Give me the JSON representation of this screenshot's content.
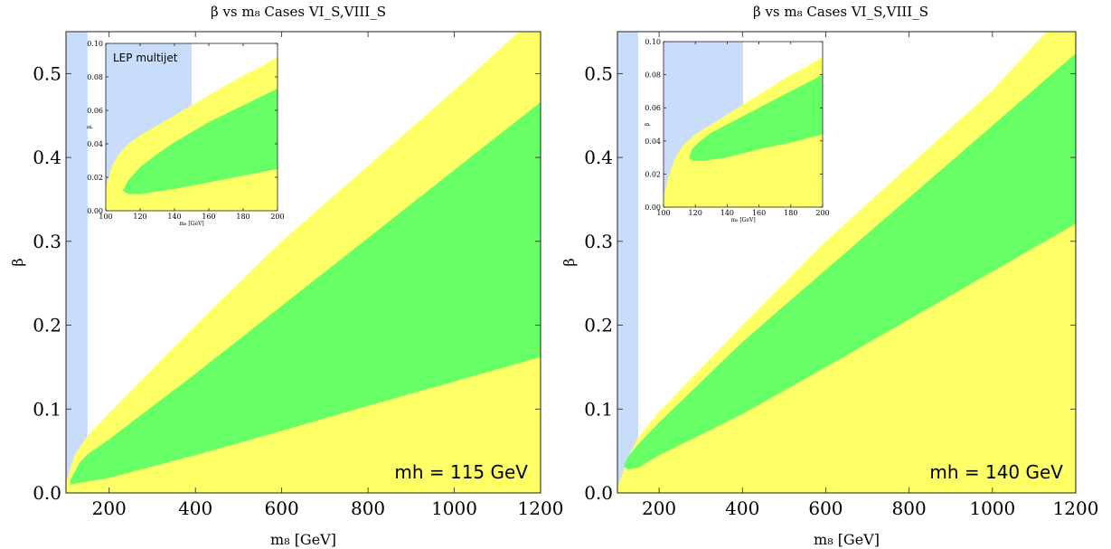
{
  "colors": {
    "excluded": "#c9ddfb",
    "yellow": "#ffff66",
    "green": "#66ff66",
    "frame": "#222222"
  },
  "chart_data": [
    {
      "type": "area",
      "title": "β vs m₈ Cases VI_S,VIII_S",
      "xlabel": "m₈ [GeV]",
      "ylabel": "β",
      "xlim": [
        100,
        1200
      ],
      "ylim": [
        0,
        0.55
      ],
      "xticks": [
        200,
        400,
        600,
        800,
        1000,
        1200
      ],
      "xtick_labels": [
        "200",
        "400",
        "600",
        "800",
        "1000",
        "1200"
      ],
      "yticks": [
        0.0,
        0.1,
        0.2,
        0.3,
        0.4,
        0.5
      ],
      "ytick_labels": [
        "0.0",
        "0.1",
        "0.2",
        "0.3",
        "0.4",
        "0.5"
      ],
      "annotation": "mh = 115 GeV",
      "excluded_band": {
        "x": [
          100,
          150
        ]
      },
      "series": [
        {
          "color": "yellow",
          "upper": {
            "x": [
              100,
              120,
              150,
              200,
              400,
              600,
              800,
              1000,
              1150
            ],
            "y": [
              0.012,
              0.045,
              0.068,
              0.095,
              0.2,
              0.3,
              0.39,
              0.48,
              0.55
            ]
          },
          "lower": {
            "x": [
              100,
              1200
            ],
            "y": [
              0.0,
              0.0
            ]
          }
        },
        {
          "color": "green",
          "upper": {
            "x": [
              110,
              130,
              150,
              200,
              400,
              600,
              800,
              1000,
              1200
            ],
            "y": [
              0.015,
              0.035,
              0.046,
              0.064,
              0.142,
              0.223,
              0.304,
              0.385,
              0.466
            ]
          },
          "lower": {
            "x": [
              110,
              130,
              200,
              400,
              600,
              800,
              1000,
              1200
            ],
            "y": [
              0.01,
              0.012,
              0.018,
              0.045,
              0.074,
              0.104,
              0.133,
              0.162
            ]
          }
        }
      ],
      "inset": {
        "xlim": [
          100,
          200
        ],
        "ylim": [
          0,
          0.1
        ],
        "xticks": [
          100,
          120,
          140,
          160,
          180,
          200
        ],
        "xtick_labels": [
          "100",
          "120",
          "140",
          "160",
          "180",
          "200"
        ],
        "yticks": [
          0.0,
          0.02,
          0.04,
          0.06,
          0.08,
          0.1
        ],
        "ytick_labels": [
          "0.00",
          "0.02",
          "0.04",
          "0.06",
          "0.08",
          "0.10"
        ],
        "xlabel": "m₈ [GeV]",
        "ylabel": "β",
        "annotation": "LEP multijet",
        "excluded_band": {
          "x": [
            100,
            150
          ]
        },
        "series": [
          {
            "color": "yellow",
            "upper": {
              "x": [
                100,
                103,
                107,
                112,
                120,
                130,
                140,
                150,
                160,
                170,
                180,
                190,
                200
              ],
              "y": [
                0.013,
                0.025,
                0.033,
                0.039,
                0.045,
                0.051,
                0.057,
                0.063,
                0.069,
                0.075,
                0.081,
                0.086,
                0.092
              ]
            },
            "lower": {
              "x": [
                100,
                200
              ],
              "y": [
                0.0,
                0.0
              ]
            }
          },
          {
            "color": "green",
            "upper": {
              "x": [
                110,
                113,
                120,
                130,
                140,
                150,
                160,
                170,
                180,
                190,
                200
              ],
              "y": [
                0.012,
                0.018,
                0.026,
                0.034,
                0.041,
                0.047,
                0.053,
                0.058,
                0.063,
                0.068,
                0.073
              ]
            },
            "lower": {
              "x": [
                110,
                113,
                120,
                140,
                160,
                180,
                200
              ],
              "y": [
                0.012,
                0.01,
                0.01,
                0.013,
                0.017,
                0.021,
                0.025
              ]
            }
          }
        ]
      }
    },
    {
      "type": "area",
      "title": "β vs m₈ Cases VI_S,VIII_S",
      "xlabel": "m₈ [GeV]",
      "ylabel": "β",
      "xlim": [
        100,
        1200
      ],
      "ylim": [
        0,
        0.55
      ],
      "xticks": [
        200,
        400,
        600,
        800,
        1000,
        1200
      ],
      "xtick_labels": [
        "200",
        "400",
        "600",
        "800",
        "1000",
        "1200"
      ],
      "yticks": [
        0.0,
        0.1,
        0.2,
        0.3,
        0.4,
        0.5
      ],
      "ytick_labels": [
        "0.0",
        "0.1",
        "0.2",
        "0.3",
        "0.4",
        "0.5"
      ],
      "annotation": "mh = 140 GeV",
      "excluded_band": {
        "x": [
          100,
          150
        ]
      },
      "series": [
        {
          "color": "yellow",
          "upper": {
            "x": [
              100,
              110,
              125,
              150,
              200,
              400,
              600,
              800,
              1000,
              1130
            ],
            "y": [
              0.006,
              0.02,
              0.042,
              0.066,
              0.097,
              0.2,
              0.3,
              0.39,
              0.48,
              0.55
            ]
          },
          "lower": {
            "x": [
              100,
              1200
            ],
            "y": [
              0.0,
              0.0
            ]
          }
        },
        {
          "color": "green",
          "upper": {
            "x": [
              115,
              125,
              150,
              200,
              400,
              600,
              800,
              1000,
              1200
            ],
            "y": [
              0.032,
              0.043,
              0.058,
              0.084,
              0.18,
              0.266,
              0.352,
              0.438,
              0.524
            ]
          },
          "lower": {
            "x": [
              115,
              125,
              150,
              200,
              400,
              600,
              800,
              1000,
              1200
            ],
            "y": [
              0.032,
              0.028,
              0.03,
              0.045,
              0.094,
              0.15,
              0.207,
              0.264,
              0.321
            ]
          }
        }
      ],
      "inset": {
        "xlim": [
          100,
          200
        ],
        "ylim": [
          0,
          0.1
        ],
        "xticks": [
          100,
          120,
          140,
          160,
          180,
          200
        ],
        "xtick_labels": [
          "100",
          "120",
          "140",
          "160",
          "180",
          "200"
        ],
        "yticks": [
          0.0,
          0.02,
          0.04,
          0.06,
          0.08,
          0.1
        ],
        "ytick_labels": [
          "0.00",
          "0.02",
          "0.04",
          "0.06",
          "0.08",
          "0.10"
        ],
        "xlabel": "m₈ [GeV]",
        "ylabel": "β",
        "annotation": "",
        "excluded_band": {
          "x": [
            100,
            150
          ]
        },
        "series": [
          {
            "color": "yellow",
            "upper": {
              "x": [
                100,
                103,
                107,
                112,
                120,
                130,
                140,
                150,
                160,
                170,
                180,
                190,
                200
              ],
              "y": [
                0.006,
                0.018,
                0.029,
                0.037,
                0.044,
                0.05,
                0.056,
                0.062,
                0.068,
                0.074,
                0.08,
                0.085,
                0.091
              ]
            },
            "lower": {
              "x": [
                100,
                200
              ],
              "y": [
                0.0,
                0.0
              ]
            }
          },
          {
            "color": "green",
            "upper": {
              "x": [
                116,
                118,
                122,
                130,
                140,
                150,
                160,
                170,
                180,
                190,
                200
              ],
              "y": [
                0.03,
                0.035,
                0.039,
                0.045,
                0.05,
                0.055,
                0.06,
                0.065,
                0.07,
                0.075,
                0.08
              ]
            },
            "lower": {
              "x": [
                116,
                118,
                125,
                140,
                160,
                180,
                200
              ],
              "y": [
                0.03,
                0.028,
                0.028,
                0.03,
                0.035,
                0.039,
                0.044
              ]
            }
          }
        ]
      }
    }
  ]
}
